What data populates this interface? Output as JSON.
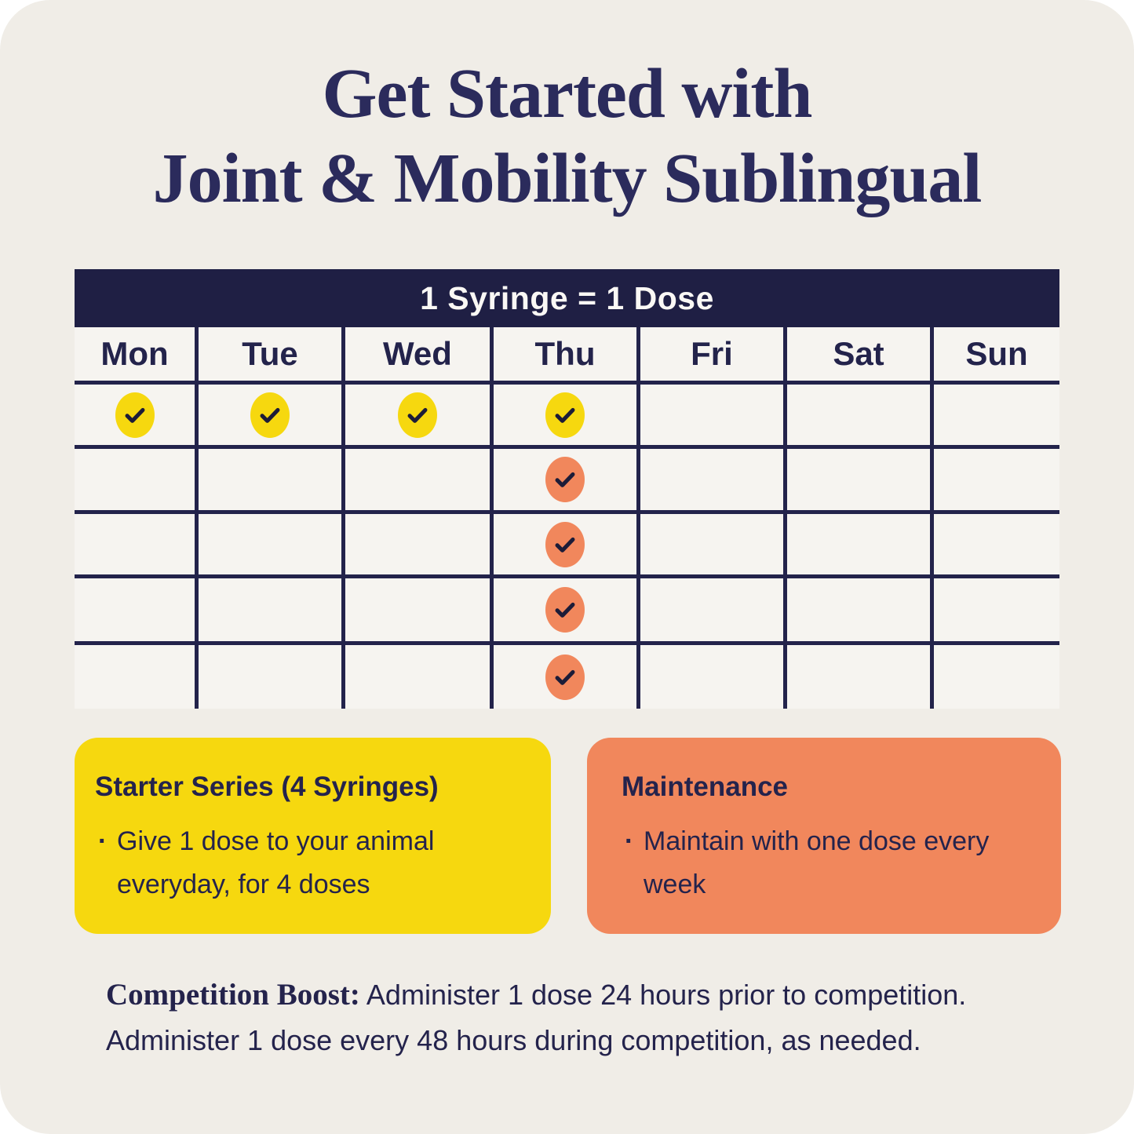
{
  "title": {
    "line1": "Get Started with",
    "line2": "Joint & Mobility Sublingual"
  },
  "schedule": {
    "banner": "1 Syringe = 1 Dose",
    "days": [
      "Mon",
      "Tue",
      "Wed",
      "Thu",
      "Fri",
      "Sat",
      "Sun"
    ],
    "rows": [
      [
        "yellow",
        "yellow",
        "yellow",
        "yellow",
        "",
        "",
        ""
      ],
      [
        "",
        "",
        "",
        "orange",
        "",
        "",
        ""
      ],
      [
        "",
        "",
        "",
        "orange",
        "",
        "",
        ""
      ],
      [
        "",
        "",
        "",
        "orange",
        "",
        "",
        ""
      ],
      [
        "",
        "",
        "",
        "orange",
        "",
        "",
        ""
      ]
    ]
  },
  "cards": {
    "starter": {
      "heading": "Starter Series (4 Syringes)",
      "bullet": "Give 1 dose to your animal everyday, for 4 doses"
    },
    "maintenance": {
      "heading": "Maintenance",
      "bullet": "Maintain with one dose every week"
    }
  },
  "footer": {
    "lead": "Competition Boost:",
    "body": "Administer 1 dose 24 hours prior to competition. Administer 1 dose every 48 hours during competition, as needed."
  },
  "colors": {
    "navy": "#23234B",
    "banner_navy": "#1F1F44",
    "yellow": "#F6D80F",
    "orange": "#F1875C",
    "cream": "#F0EDE7",
    "cell": "#F6F4F0",
    "check_stroke": "#1C1C38"
  }
}
